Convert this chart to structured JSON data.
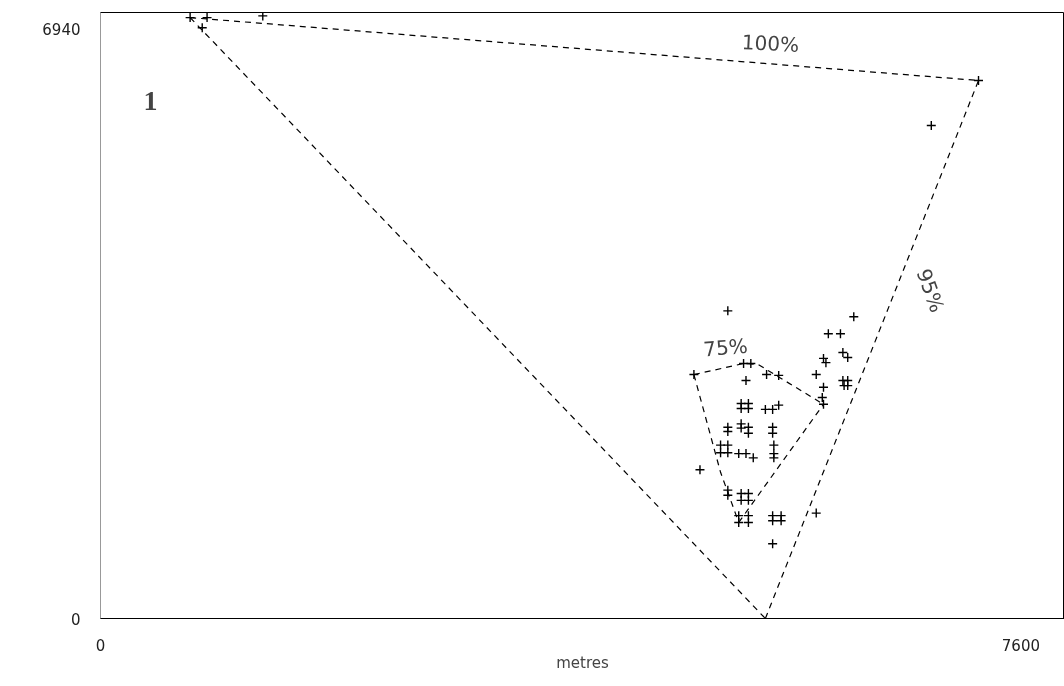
{
  "chart_data": {
    "type": "scatter",
    "xlabel": "metres",
    "xlim": [
      0,
      7960
    ],
    "ylim": [
      0,
      7130
    ],
    "xticks": [
      0,
      7600
    ],
    "yticks": [
      0,
      6940
    ],
    "grid": false,
    "marker": "cross",
    "annotations": [
      "1",
      "100%",
      "95%",
      "75%"
    ],
    "series": [
      {
        "color": "#000000",
        "x": [
          5180,
          6220,
          6010,
          6110,
          4900,
          5310,
          5370,
          5330,
          5500,
          5600,
          5970,
          5990,
          6130,
          6170,
          5910,
          6130,
          6170,
          6140,
          6170,
          5970,
          5960,
          5970,
          5290,
          5350,
          5290,
          5350,
          5490,
          5550,
          5600,
          5180,
          5180,
          5290,
          5290,
          5350,
          5350,
          5550,
          5550,
          5120,
          5180,
          5120,
          5180,
          5270,
          5330,
          5390,
          5560,
          5560,
          5560,
          4950,
          5180,
          5180,
          5290,
          5350,
          5290,
          5350,
          5270,
          5350,
          5270,
          5350,
          5550,
          5620,
          5550,
          5620,
          5910,
          5550,
          6860,
          7250,
          740,
          880,
          840,
          1340
        ],
        "values": [
          3620,
          3550,
          3350,
          3350,
          2870,
          3000,
          3000,
          2800,
          2870,
          2860,
          3060,
          3010,
          3130,
          3070,
          2870,
          2800,
          2800,
          2740,
          2740,
          2720,
          2600,
          2520,
          2530,
          2530,
          2470,
          2470,
          2460,
          2460,
          2510,
          2250,
          2200,
          2290,
          2240,
          2250,
          2180,
          2250,
          2180,
          2040,
          2040,
          1950,
          1950,
          1940,
          1940,
          1890,
          2040,
          1940,
          1890,
          1750,
          1510,
          1450,
          1470,
          1470,
          1390,
          1390,
          1210,
          1210,
          1130,
          1130,
          1210,
          1210,
          1150,
          1150,
          1240,
          880,
          5800,
          6330,
          7070,
          7070,
          6950,
          7090
        ]
      },
      {
        "type": "line",
        "color": "#000000",
        "marker": "none",
        "line_style": "dashed",
        "x": [
          740,
          7250
        ],
        "values": [
          7070,
          6330
        ]
      },
      {
        "type": "line",
        "color": "#000000",
        "marker": "none",
        "line_style": "dashed",
        "x": [
          5490,
          7250
        ],
        "values": [
          0,
          6330
        ]
      },
      {
        "type": "line",
        "color": "#000000",
        "marker": "none",
        "line_style": "dashed",
        "x": [
          740,
          5490
        ],
        "values": [
          7070,
          0
        ]
      },
      {
        "type": "line",
        "color": "#000000",
        "marker": "none",
        "line_style": "dashed",
        "x": [
          4900,
          5310,
          5430,
          5970
        ],
        "values": [
          2870,
          3000,
          2990,
          2520
        ]
      },
      {
        "type": "line",
        "color": "#000000",
        "marker": "none",
        "line_style": "dashed",
        "x": [
          5270,
          5970
        ],
        "values": [
          1130,
          2520
        ]
      },
      {
        "type": "line",
        "color": "#000000",
        "marker": "none",
        "line_style": "dashed",
        "x": [
          4900,
          5120,
          5270
        ],
        "values": [
          2870,
          1720,
          1130
        ]
      }
    ]
  }
}
